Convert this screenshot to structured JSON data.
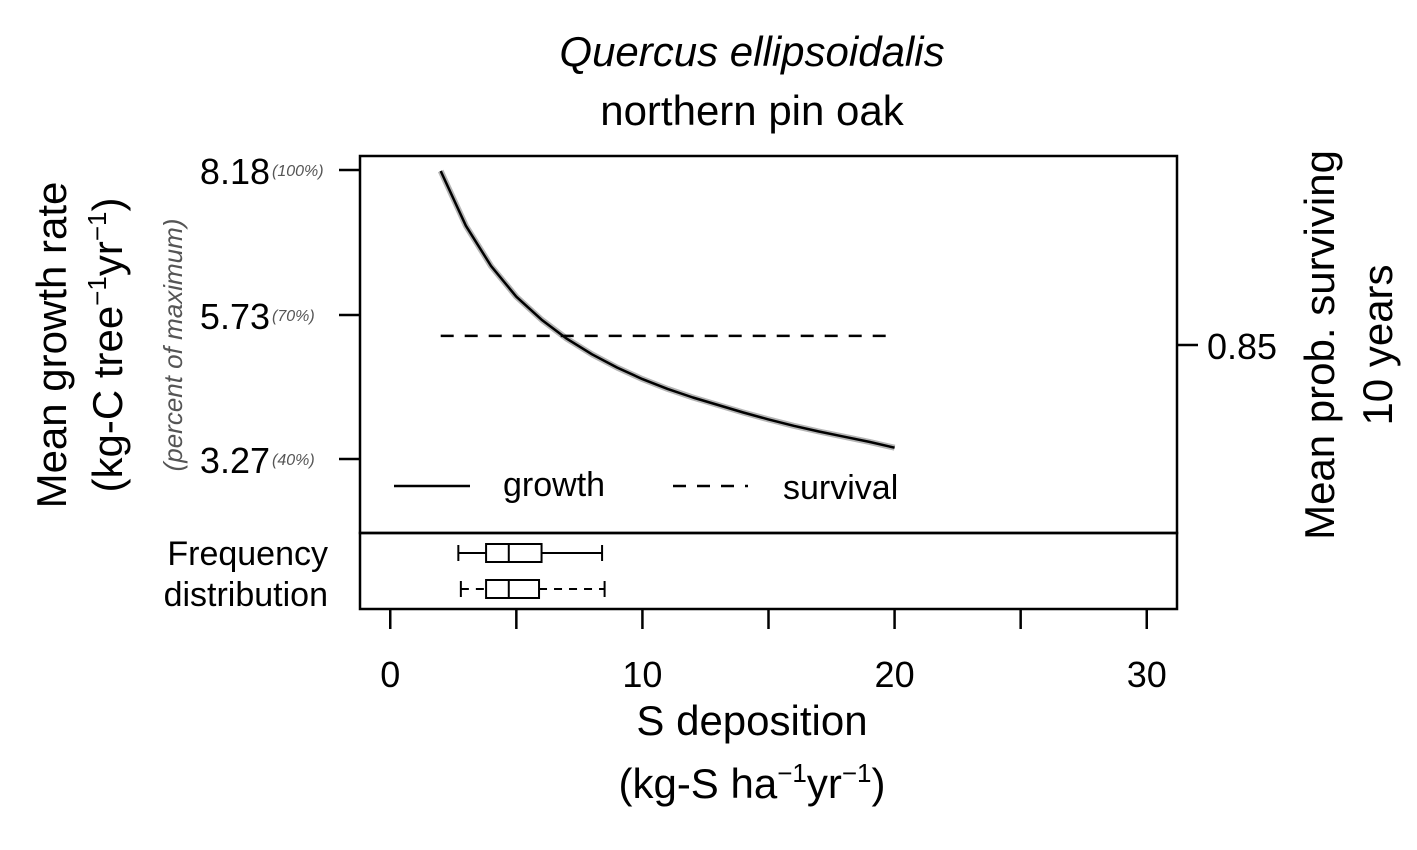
{
  "chart_data": {
    "type": "line",
    "title": "Quercus ellipsoidalis",
    "subtitle": "northern pin oak",
    "xlabel": "S deposition",
    "xlabel_units": {
      "open": "(kg-S ha",
      "exp1": "−1",
      "mid": "yr",
      "exp2": "−1",
      "close": ")"
    },
    "ylabel_left": "Mean growth rate",
    "ylabel_left_units": {
      "open": "(kg-C tree",
      "exp1": "−1",
      "mid": "yr",
      "exp2": "−1",
      "close": ")"
    },
    "ylabel_left_note": "(percent of maximum)",
    "ylabel_right_line1": "Mean prob. surviving",
    "ylabel_right_line2": "10 years",
    "xlim": [
      -1.2,
      31.2
    ],
    "x_ticks": [
      0,
      5,
      10,
      15,
      20,
      25,
      30
    ],
    "x_tick_labels": [
      "0",
      "",
      "10",
      "",
      "20",
      "",
      "30"
    ],
    "ylim_left": [
      1.9,
      8.44
    ],
    "y_left_ticks": [
      {
        "value": 8.18,
        "label": "8.18",
        "pct": "(100%)"
      },
      {
        "value": 5.73,
        "label": "5.73",
        "pct": "(70%)"
      },
      {
        "value": 3.27,
        "label": "3.27",
        "pct": "(40%)"
      }
    ],
    "y_right_ticks": [
      {
        "label": "0.85"
      }
    ],
    "series": [
      {
        "name": "growth",
        "style": "solid",
        "x": [
          2,
          3,
          4,
          5,
          6,
          7,
          8,
          9,
          10,
          11,
          12,
          13,
          14,
          15,
          16,
          17,
          18,
          19,
          20
        ],
        "y": [
          8.18,
          7.23,
          6.53,
          6.0,
          5.6,
          5.27,
          5.0,
          4.77,
          4.57,
          4.4,
          4.25,
          4.12,
          3.99,
          3.87,
          3.76,
          3.66,
          3.57,
          3.48,
          3.38
        ]
      },
      {
        "name": "survival",
        "style": "dashed",
        "x": [
          2,
          20
        ],
        "y": [
          5.32,
          5.32
        ]
      }
    ],
    "legend": {
      "position": "bottom-inside",
      "items": [
        "growth",
        "survival"
      ]
    },
    "frequency_distribution": {
      "label_line1": "Frequency",
      "label_line2": "distribution",
      "boxes": [
        {
          "style": "solid",
          "min": 2.7,
          "q1": 3.8,
          "median": 4.7,
          "q3": 6.0,
          "max": 8.4
        },
        {
          "style": "dashed",
          "min": 2.8,
          "q1": 3.8,
          "median": 4.7,
          "q3": 5.9,
          "max": 8.5
        }
      ]
    }
  }
}
